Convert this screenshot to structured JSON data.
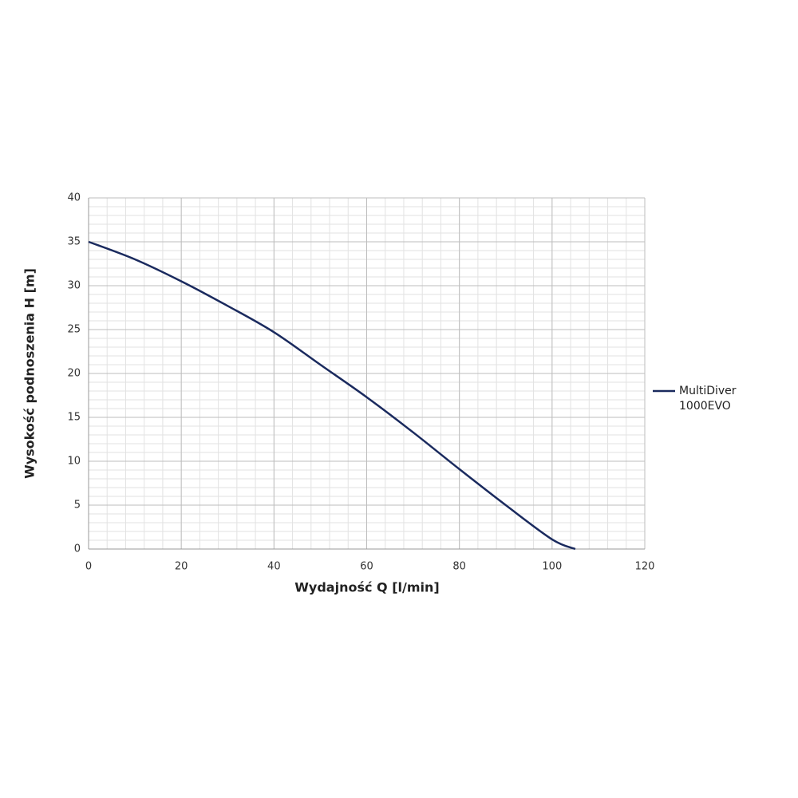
{
  "chart_data": {
    "type": "line",
    "x_label": "Wydajność Q [l/min]",
    "y_label": "Wysokość podnoszenia H [m]",
    "x": [
      0,
      10,
      20,
      30,
      40,
      50,
      60,
      70,
      80,
      90,
      100,
      105
    ],
    "series": [
      {
        "name": "MultiDiver 1000EVO",
        "color": "#1a2a5e",
        "values": [
          35,
          33,
          30.5,
          27.7,
          24.7,
          21,
          17.3,
          13.3,
          9.1,
          5,
          1.1,
          0
        ]
      }
    ],
    "xlim": [
      0,
      120
    ],
    "xticks": [
      0,
      20,
      40,
      60,
      80,
      100,
      120
    ],
    "ylim": [
      0,
      40
    ],
    "yticks": [
      0,
      5,
      10,
      15,
      20,
      25,
      30,
      35,
      40
    ],
    "grid": true,
    "minor_grid": {
      "x": 4,
      "y": 1
    },
    "legend": "right"
  }
}
